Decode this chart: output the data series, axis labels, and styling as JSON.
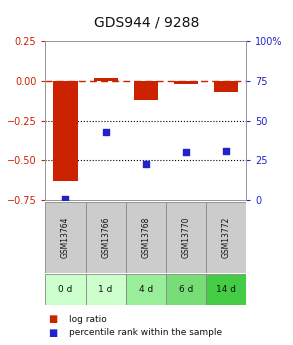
{
  "title": "GDS944 / 9288",
  "samples": [
    "GSM13764",
    "GSM13766",
    "GSM13768",
    "GSM13770",
    "GSM13772"
  ],
  "time_labels": [
    "0 d",
    "1 d",
    "4 d",
    "6 d",
    "14 d"
  ],
  "log_ratio": [
    -0.63,
    0.02,
    -0.12,
    -0.02,
    -0.07
  ],
  "percentile_rank": [
    1,
    43,
    23,
    30,
    31
  ],
  "ylim_left": [
    -0.75,
    0.25
  ],
  "ylim_right": [
    0,
    100
  ],
  "bar_color": "#cc2200",
  "dot_color": "#2222cc",
  "bg_color": "#ffffff",
  "zero_line_color": "#cc2200",
  "dotted_line_color": "#000000",
  "sample_box_color": "#cccccc",
  "time_box_colors": [
    "#ccffcc",
    "#ccffcc",
    "#99ee99",
    "#77dd77",
    "#44cc44"
  ],
  "title_fontsize": 10,
  "tick_fontsize": 7,
  "legend_fontsize": 6.5,
  "bar_width": 0.6
}
